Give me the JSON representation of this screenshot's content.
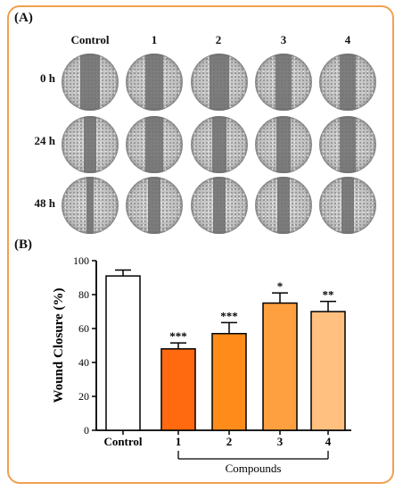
{
  "panel_a": {
    "label": "(A)",
    "columns": [
      "Control",
      "1",
      "2",
      "3",
      "4"
    ],
    "rows": [
      "0 h",
      "24 h",
      "48 h"
    ]
  },
  "panel_b": {
    "label": "(B)"
  },
  "chart_data": {
    "type": "bar",
    "categories": [
      "Control",
      "1",
      "2",
      "3",
      "4"
    ],
    "values": [
      91,
      48,
      57,
      75,
      70
    ],
    "errors": [
      3.5,
      3.5,
      6.5,
      6,
      6
    ],
    "significance": [
      "",
      "***",
      "***",
      "*",
      "**"
    ],
    "colors": [
      "#ffffff",
      "#ff6a10",
      "#ff8c1a",
      "#ffa040",
      "#ffc080"
    ],
    "ylabel": "Wound Closure (%)",
    "group_label": "Compounds",
    "ylim": [
      0,
      100
    ],
    "yticks": [
      0,
      20,
      40,
      60,
      80,
      100
    ]
  }
}
